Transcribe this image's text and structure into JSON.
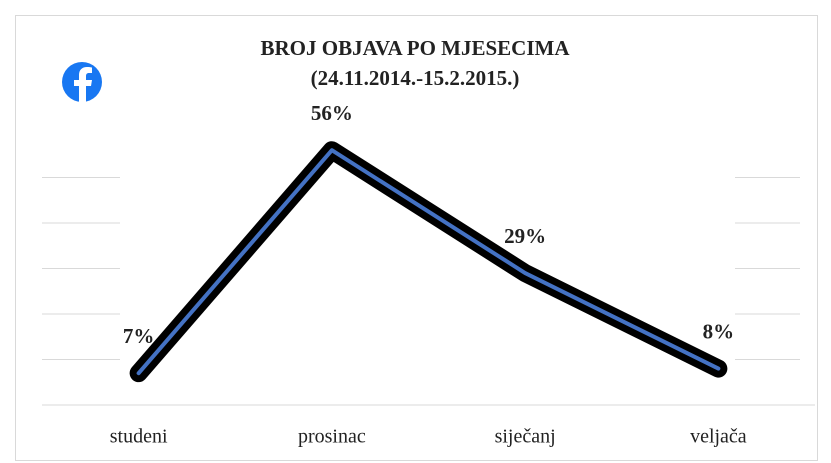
{
  "chart_data": {
    "type": "line",
    "title": "BROJ OBJAVA PO MJESECIMA",
    "subtitle": "(24.11.2014.-15.2.2015.)",
    "categories": [
      "studeni",
      "prosinac",
      "siječanj",
      "veljača"
    ],
    "series": [
      {
        "name": "Broj objava",
        "color": "#4472c4",
        "values": [
          7,
          56,
          29,
          8
        ],
        "value_labels": [
          "7%",
          "56%",
          "29%",
          "8%"
        ]
      }
    ],
    "ylim": [
      0,
      60
    ],
    "yticks": [
      0,
      10,
      20,
      30,
      40,
      50
    ],
    "grid": true
  }
}
